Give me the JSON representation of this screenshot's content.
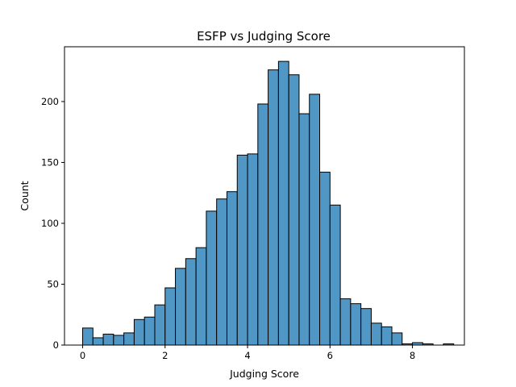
{
  "chart_data": {
    "type": "bar",
    "title": "ESFP vs Judging Score",
    "xlabel": "Judging Score",
    "ylabel": "Count",
    "xlim": [
      -0.44,
      9.26
    ],
    "ylim": [
      0,
      245
    ],
    "xticks": [
      "0",
      "2",
      "4",
      "6",
      "8"
    ],
    "yticks": [
      "0",
      "50",
      "100",
      "150",
      "200"
    ],
    "bin_edges": [
      0,
      0.25,
      0.5,
      0.75,
      1,
      1.25,
      1.5,
      1.75,
      2,
      2.25,
      2.5,
      2.75,
      3,
      3.25,
      3.5,
      3.75,
      4,
      4.25,
      4.5,
      4.75,
      5,
      5.25,
      5.5,
      5.75,
      6,
      6.25,
      6.5,
      6.75,
      7,
      7.25,
      7.5,
      7.75,
      8,
      8.25,
      8.5,
      8.75,
      9
    ],
    "values": [
      14,
      6,
      9,
      8,
      10,
      21,
      23,
      33,
      47,
      63,
      71,
      80,
      110,
      120,
      126,
      156,
      157,
      198,
      226,
      233,
      222,
      190,
      206,
      142,
      115,
      38,
      34,
      30,
      18,
      15,
      10,
      1,
      2,
      1,
      0,
      1
    ],
    "bar_color": "#5197c6",
    "grid": false
  }
}
